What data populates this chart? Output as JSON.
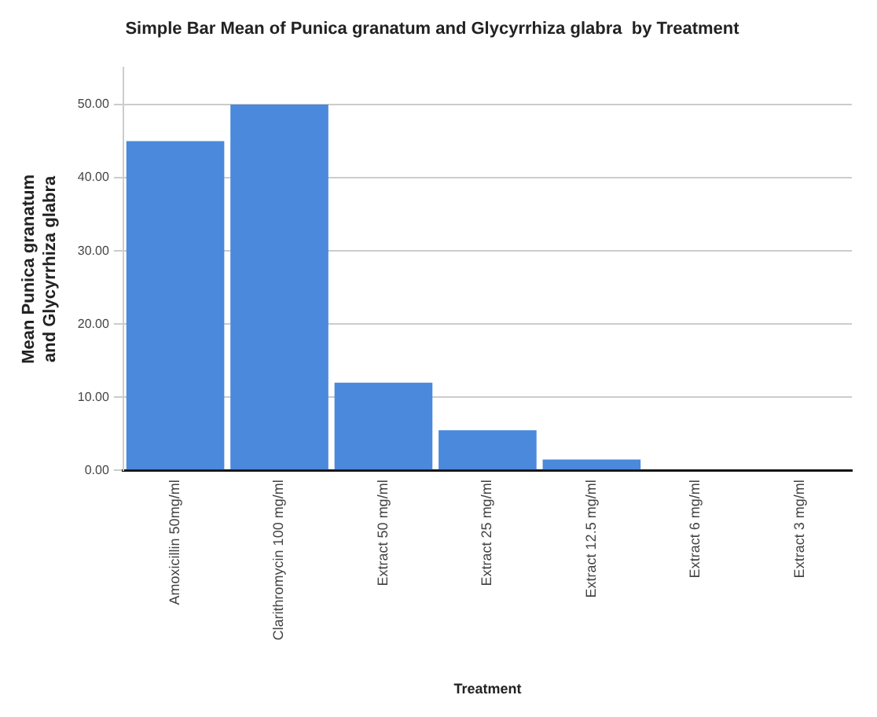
{
  "chart_data": {
    "type": "bar",
    "title": "Simple Bar Mean of Punica granatum and Glycyrrhiza glabra  by Treatment",
    "xlabel": "Treatment",
    "ylabel": "Mean Punica granatum and Glycyrrhiza glabra",
    "categories": [
      "Amoxicillin 50mg/ml",
      "Clarithromycin 100 mg/ml",
      "Extract 50 mg/ml",
      "Extract 25 mg/ml",
      "Extract 12.5 mg/ml",
      "Extract 6 mg/ml",
      "Extract 3 mg/ml"
    ],
    "values": [
      45,
      50,
      12,
      5.5,
      1.5,
      0,
      0
    ],
    "color": "#4a89dc",
    "ylim": [
      0,
      55
    ],
    "yticks": [
      {
        "value": 0,
        "label": "0.00"
      },
      {
        "value": 10,
        "label": "10.00"
      },
      {
        "value": 20,
        "label": "20.00"
      },
      {
        "value": 30,
        "label": "30.00"
      },
      {
        "value": 40,
        "label": "40.00"
      },
      {
        "value": 50,
        "label": "50.00"
      }
    ],
    "grid": "y"
  }
}
